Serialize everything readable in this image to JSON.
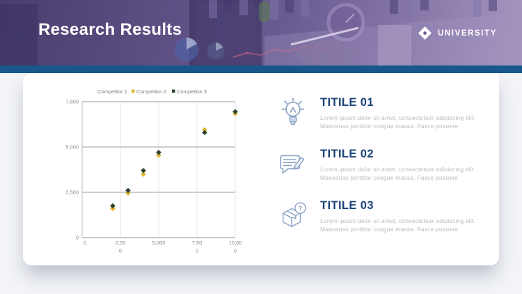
{
  "slide": {
    "title": "Research Results",
    "logo_text": "UNIVERSITY"
  },
  "colors": {
    "accent_bar": "#16588c",
    "header_purple": "#5d4e82",
    "heading_navy": "#1b4379",
    "body_gray": "#b9babc",
    "icon_stroke": "#8ba3c6",
    "axis_text": "#8a8a8a",
    "competitor2_yellow": "#e2b72d",
    "competitor3_dark": "#2e452e"
  },
  "chart_data": {
    "type": "scatter",
    "x": [
      2000,
      3000,
      4000,
      5000,
      8000,
      10000
    ],
    "series": [
      {
        "name": "Competitor 1",
        "color": "#ffffff",
        "values": []
      },
      {
        "name": "Competitor 2",
        "color": "#e2b72d",
        "values": [
          1600,
          2450,
          3500,
          4550,
          5950,
          6850
        ]
      },
      {
        "name": "Competitor 3",
        "color": "#2e452e",
        "values": [
          1750,
          2600,
          3700,
          4700,
          5800,
          6950
        ]
      }
    ],
    "title": "",
    "xlabel": "",
    "ylabel": "",
    "xlim": [
      0,
      10000
    ],
    "ylim": [
      0,
      7500
    ],
    "xticks": [
      0,
      2500,
      5000,
      7500,
      10000
    ],
    "xtick_labels": [
      [
        "0"
      ],
      [
        "2,50",
        "0"
      ],
      [
        "5,000"
      ],
      [
        "7,50",
        "0"
      ],
      [
        "10,00",
        "0"
      ]
    ],
    "yticks": [
      7500,
      5000,
      2500,
      0
    ],
    "ytick_labels": [
      "7,500",
      "5,000",
      "2,500",
      "0"
    ],
    "grid": true,
    "legend_position": "top"
  },
  "features": [
    {
      "icon": "lightbulb-icon",
      "title": "TITILE 01",
      "body": "Lorem ipsum dolor sit amet, consectetuer adipiscing elit. Maecenas porttitor congue massa. Fusce posuere"
    },
    {
      "icon": "chat-edit-icon",
      "title": "TITILE 02",
      "body": "Lorem ipsum dolor sit amet, consectetuer adipiscing elit. Maecenas porttitor congue massa. Fusce posuere"
    },
    {
      "icon": "box-question-icon",
      "title": "TITILE 03",
      "body": "Lorem ipsum dolor sit amet, consectetuer adipiscing elit. Maecenas porttitor congue massa. Fusce posuere"
    }
  ]
}
